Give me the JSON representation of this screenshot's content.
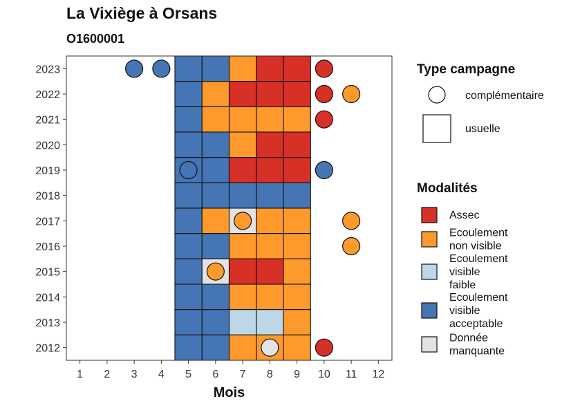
{
  "chart_data": {
    "type": "heatmap",
    "title": "La Vixiège à Orsans",
    "subtitle": "O1600001",
    "xlabel": "Mois",
    "ylabel": "",
    "x_ticks": [
      "1",
      "2",
      "3",
      "4",
      "5",
      "6",
      "7",
      "8",
      "9",
      "10",
      "11",
      "12"
    ],
    "y_ticks": [
      "2012",
      "2013",
      "2014",
      "2015",
      "2016",
      "2017",
      "2018",
      "2019",
      "2020",
      "2021",
      "2022",
      "2023"
    ],
    "xlim": [
      0.5,
      12.5
    ],
    "ylim": [
      2011.5,
      2023.5
    ],
    "legend_type": {
      "title": "Type campagne",
      "entries": [
        {
          "shape": "circle",
          "label": "complémentaire"
        },
        {
          "shape": "square",
          "label": "usuelle"
        }
      ]
    },
    "legend_mod": {
      "title": "Modalités",
      "entries": [
        {
          "key": "A",
          "label_lines": [
            "Assec"
          ],
          "color": "#D73027"
        },
        {
          "key": "N",
          "label_lines": [
            "Ecoulement",
            "non visible"
          ],
          "color": "#FD9A2B"
        },
        {
          "key": "F",
          "label_lines": [
            "Ecoulement",
            "visible",
            "faible"
          ],
          "color": "#BDD7E7"
        },
        {
          "key": "V",
          "label_lines": [
            "Ecoulement",
            "visible",
            "acceptable"
          ],
          "color": "#4575B4"
        },
        {
          "key": "M",
          "label_lines": [
            "Donnée",
            "manquante"
          ],
          "color": "#E3E3E3"
        }
      ]
    },
    "usuelle": [
      {
        "year": 2023,
        "cells": [
          "V",
          "V",
          "N",
          "A",
          "A"
        ]
      },
      {
        "year": 2022,
        "cells": [
          "V",
          "N",
          "A",
          "A",
          "A"
        ]
      },
      {
        "year": 2021,
        "cells": [
          "V",
          "N",
          "N",
          "N",
          "N"
        ]
      },
      {
        "year": 2020,
        "cells": [
          "V",
          "V",
          "N",
          "A",
          "A"
        ]
      },
      {
        "year": 2019,
        "cells": [
          "V",
          "V",
          "A",
          "A",
          "A"
        ]
      },
      {
        "year": 2018,
        "cells": [
          "V",
          "V",
          "V",
          "V",
          "V"
        ]
      },
      {
        "year": 2017,
        "cells": [
          "V",
          "N",
          "M",
          "N",
          "N"
        ]
      },
      {
        "year": 2016,
        "cells": [
          "V",
          "V",
          "N",
          "N",
          "N"
        ]
      },
      {
        "year": 2015,
        "cells": [
          "V",
          "M",
          "A",
          "A",
          "N"
        ]
      },
      {
        "year": 2014,
        "cells": [
          "V",
          "V",
          "N",
          "N",
          "N"
        ]
      },
      {
        "year": 2013,
        "cells": [
          "V",
          "V",
          "F",
          "F",
          "N"
        ]
      },
      {
        "year": 2012,
        "cells": [
          "V",
          "V",
          "N",
          "N",
          "N"
        ]
      }
    ],
    "usuelle_months": [
      5,
      6,
      7,
      8,
      9
    ],
    "complementaire": [
      {
        "year": 2023,
        "month": 3,
        "mod": "V"
      },
      {
        "year": 2023,
        "month": 4,
        "mod": "V"
      },
      {
        "year": 2023,
        "month": 10,
        "mod": "A"
      },
      {
        "year": 2022,
        "month": 10,
        "mod": "A"
      },
      {
        "year": 2022,
        "month": 11,
        "mod": "N"
      },
      {
        "year": 2021,
        "month": 10,
        "mod": "A"
      },
      {
        "year": 2019,
        "month": 5,
        "mod": "V"
      },
      {
        "year": 2019,
        "month": 10,
        "mod": "V"
      },
      {
        "year": 2017,
        "month": 7,
        "mod": "N"
      },
      {
        "year": 2017,
        "month": 11,
        "mod": "N"
      },
      {
        "year": 2016,
        "month": 11,
        "mod": "N"
      },
      {
        "year": 2015,
        "month": 6,
        "mod": "N"
      },
      {
        "year": 2012,
        "month": 8,
        "mod": "M"
      },
      {
        "year": 2012,
        "month": 10,
        "mod": "A"
      }
    ]
  }
}
